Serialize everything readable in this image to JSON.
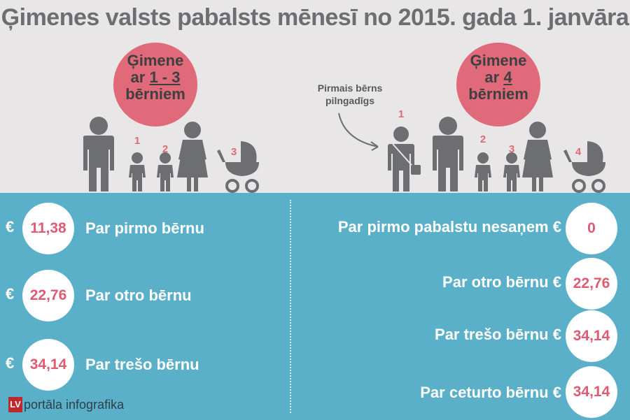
{
  "title": "Ģimenes valsts pabalsts mēnesī no 2015. gada 1. janvāra",
  "left_badge": {
    "line1": "Ģimene",
    "line2_prefix": "ar ",
    "line2_range": "1 - 3",
    "line3": "bērniem"
  },
  "right_badge": {
    "line1": "Ģimene",
    "line2_prefix": "ar ",
    "line2_count": "4",
    "line3": "bērniem"
  },
  "note": {
    "line1": "Pirmais bērns",
    "line2": "pilngadīgs"
  },
  "left_child_numbers": [
    "1",
    "2",
    "3"
  ],
  "right_child_numbers": [
    "1",
    "2",
    "3",
    "4"
  ],
  "currency": "€",
  "left_benefits": [
    {
      "label": "Par pirmo bērnu",
      "amount": "11,38"
    },
    {
      "label": "Par otro bērnu",
      "amount": "22,76"
    },
    {
      "label": "Par trešo bērnu",
      "amount": "34,14"
    }
  ],
  "right_benefits": [
    {
      "label": "Par pirmo pabalstu nesaņem",
      "amount": "0"
    },
    {
      "label": "Par otro bērnu",
      "amount": "22,76"
    },
    {
      "label": "Par trešo bērnu",
      "amount": "34,14"
    },
    {
      "label": "Par ceturto bērnu",
      "amount": "34,14"
    }
  ],
  "brand": {
    "logo": "LV",
    "text": "portāla infografika"
  },
  "colors": {
    "background": "#e9e6e7",
    "panel": "#5ab0c8",
    "accent": "#e06a7a",
    "figure": "#6d6e71"
  }
}
